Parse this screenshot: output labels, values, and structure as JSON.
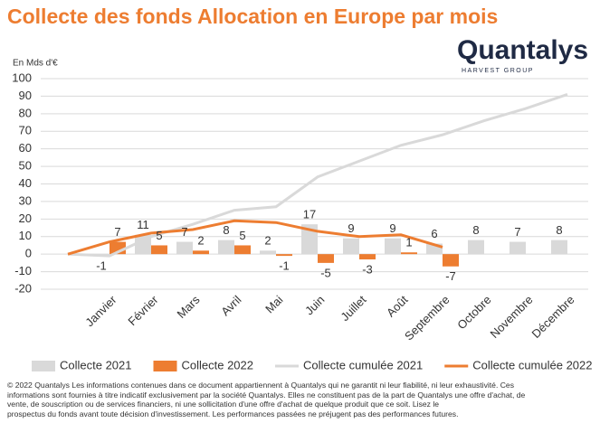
{
  "chart_data": {
    "type": "bar",
    "title": "Collecte des fonds Allocation en Europe par mois",
    "brand": "Quantalys",
    "brand_sub": "HARVEST GROUP",
    "y_label": "En Mds d'€",
    "categories": [
      null,
      "Janvier",
      "Février",
      "Mars",
      "Avril",
      "Mai",
      "Juin",
      "Juillet",
      "Août",
      "Septembre",
      "Octobre",
      "Novembre",
      "Décembre"
    ],
    "series": [
      {
        "name": "Collecte 2021",
        "kind": "bar",
        "color": "#d9d9d9",
        "values": [
          null,
          -1,
          11,
          7,
          8,
          2,
          17,
          9,
          9,
          6,
          8,
          7,
          8
        ]
      },
      {
        "name": "Collecte 2022",
        "kind": "bar",
        "color": "#ed7d31",
        "values": [
          null,
          7,
          5,
          2,
          5,
          -1,
          -5,
          -3,
          1,
          -7,
          null,
          null,
          null
        ]
      },
      {
        "name": "Collecte cumulée 2021",
        "kind": "line",
        "color": "#d9d9d9",
        "values": [
          0,
          -1,
          10,
          17,
          25,
          27,
          44,
          53,
          62,
          68,
          76,
          83,
          91
        ]
      },
      {
        "name": "Collecte cumulée 2022",
        "kind": "line",
        "color": "#ed7d31",
        "values": [
          0,
          7,
          12,
          14,
          19,
          18,
          13,
          10,
          11,
          4,
          null,
          null,
          null
        ]
      }
    ],
    "ylim": [
      -20,
      100
    ],
    "yticks": [
      -20,
      -10,
      0,
      10,
      20,
      30,
      40,
      50,
      60,
      70,
      80,
      90,
      100
    ],
    "grid": true,
    "footer": [
      "© 2022 Quantalys Les informations contenues dans ce document appartiennent à Quantalys qui ne garantit ni leur fiabilité, ni leur exhaustivité. Ces",
      "informations sont fournies à titre indicatif exclusivement par la société Quantalys. Elles ne constituent pas de la part de Quantalys une offre d'achat, de",
      "vente, de souscription ou de services financiers, ni une sollicitation d'une offre d'achat de quelque produit que ce soit. Lisez le",
      "prospectus du fonds avant toute décision d'investissement. Les performances passées ne préjugent pas des performances futures."
    ]
  }
}
